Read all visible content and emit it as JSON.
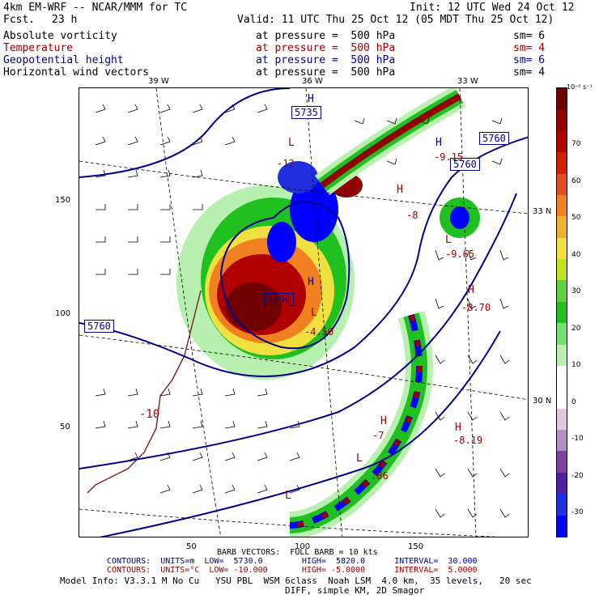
{
  "header": {
    "model": "4km EM-WRF -- NCAR/MMM for TC",
    "init": "Init: 12 UTC Wed 24 Oct 12",
    "fcst_label": "Fcst.",
    "fcst_value": "23 h",
    "valid": "Valid: 11 UTC Thu 25 Oct 12 (05 MDT Thu 25 Oct 12)"
  },
  "fields": [
    {
      "name": "Absolute vorticity",
      "level": "at pressure =  500 hPa",
      "sm": "sm= 6",
      "color": "#000000"
    },
    {
      "name": "Temperature",
      "level": "at pressure =  500 hPa",
      "sm": "sm= 4",
      "color": "#a00000"
    },
    {
      "name": "Geopotential height",
      "level": "at pressure =  500 hPa",
      "sm": "sm= 6",
      "color": "#00008c"
    },
    {
      "name": "Horizontal wind vectors",
      "level": "at pressure =  500 hPa",
      "sm": "sm= 4",
      "color": "#000000"
    }
  ],
  "map": {
    "lon_labels": [
      "39 W",
      "36 W",
      "33 W"
    ],
    "lat_labels": [
      "33 N",
      "30 N"
    ],
    "y_ticks": [
      "150",
      "100",
      "50"
    ],
    "x_ticks": [
      "50",
      "100",
      "150"
    ],
    "height_labels": [
      "5735",
      "5760",
      "5760",
      "5760",
      "5790"
    ],
    "h_markers": [
      "H",
      "H",
      "H",
      "H",
      "H",
      "H",
      "H"
    ],
    "l_markers": [
      "L",
      "L",
      "L",
      "L",
      "L"
    ],
    "temp_labels": [
      "-9.15",
      "-8",
      "-9.65",
      "-8.70",
      "-4.50",
      "-10",
      "-7",
      "-8.19",
      ".86",
      "-12"
    ]
  },
  "colorbar": {
    "units": "10⁻⁵ s⁻¹",
    "labels": [
      "70",
      "60",
      "50",
      "40",
      "30",
      "20",
      "10",
      "0",
      "-10",
      "-20",
      "-30"
    ],
    "colors": [
      "#700000",
      "#900000",
      "#b00000",
      "#d02000",
      "#e05020",
      "#f08020",
      "#f0b030",
      "#f0e040",
      "#c0e020",
      "#60d040",
      "#20c020",
      "#70e070",
      "#b8f0b0",
      "#ffffff",
      "#ffffff",
      "#e0c8e0",
      "#b090c0",
      "#8040a0",
      "#5020a0",
      "#2030e0",
      "#0000ff"
    ]
  },
  "footer": {
    "barb_line": "BARB VECTORS:  FULL BARB = 10 kts",
    "contours_blue": "CONTOURS:  UNITS=m  LOW=  5730.0        HIGH=  5820.0      INTERVAL=  30.000",
    "contours_red": "CONTOURS:  UNITS=°C  LOW= -10.000       HIGH= -5.0000      INTERVAL=  5.0000",
    "model_info": "Model Info: V3.3.1 M No Cu   YSU PBL  WSM 6class  Noah LSM  4.0 km,  35 levels,   20 sec",
    "model_info2": "DIFF, simple KM, 2D Smagor"
  }
}
